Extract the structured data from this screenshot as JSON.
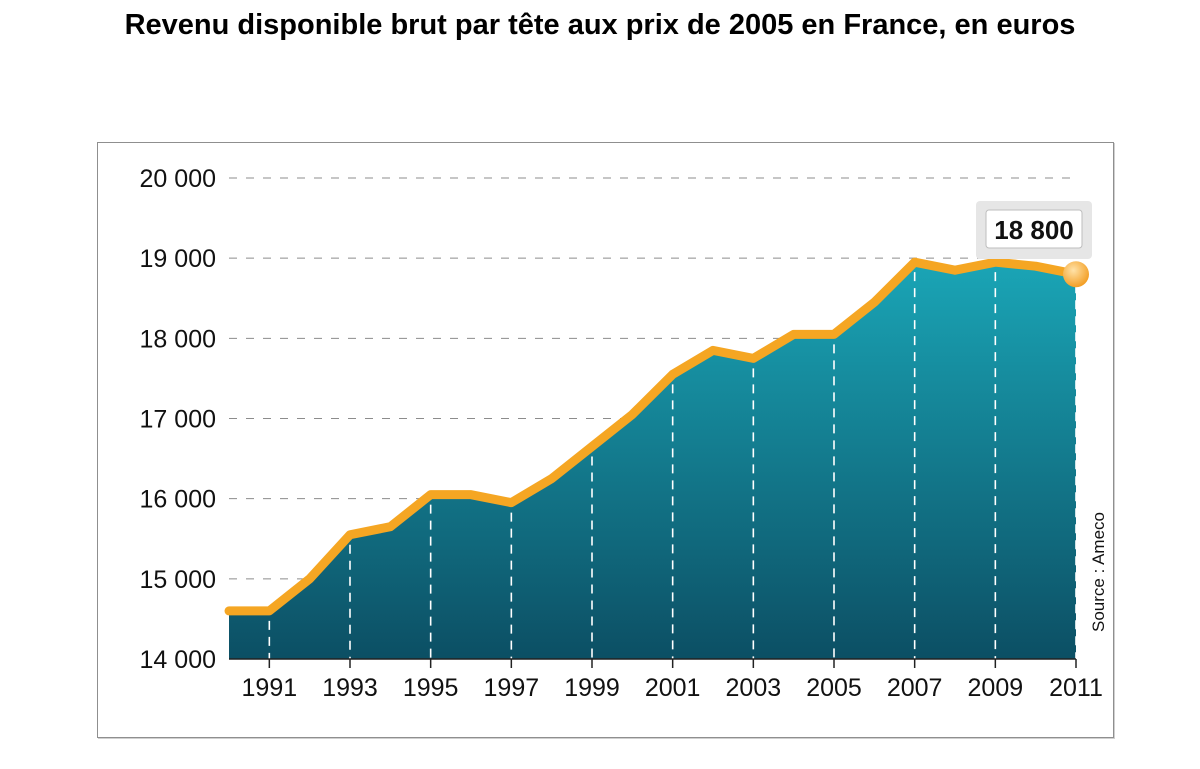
{
  "chart_data": {
    "type": "area",
    "title": "Revenu disponible brut par tête aux prix de 2005 en France, en euros",
    "xlabel": "",
    "ylabel": "",
    "x": [
      1990,
      1991,
      1992,
      1993,
      1994,
      1995,
      1996,
      1997,
      1998,
      1999,
      2000,
      2001,
      2002,
      2003,
      2004,
      2005,
      2006,
      2007,
      2008,
      2009,
      2010,
      2011
    ],
    "values": [
      14600,
      14600,
      15000,
      15550,
      15650,
      16050,
      16050,
      15950,
      16250,
      16650,
      17050,
      17550,
      17850,
      17750,
      18050,
      18050,
      18450,
      18950,
      18850,
      18950,
      18900,
      18800
    ],
    "x_tick_labels": [
      "1991",
      "1993",
      "1995",
      "1997",
      "1999",
      "2001",
      "2003",
      "2005",
      "2007",
      "2009",
      "2011"
    ],
    "y_tick_labels": [
      "14 000",
      "15 000",
      "16 000",
      "17 000",
      "18 000",
      "19 000",
      "20 000"
    ],
    "y_ticks": [
      14000,
      15000,
      16000,
      17000,
      18000,
      19000,
      20000
    ],
    "ylim": [
      14000,
      20000
    ],
    "xlim": [
      1990,
      2011
    ],
    "grid": true,
    "annotation": "18 800",
    "source": "Source : Ameco",
    "colors": {
      "line": "#f5a623",
      "area_top": "#1aa5b6",
      "area_bottom": "#0c4f64",
      "grid": "#8c8c8c"
    }
  }
}
